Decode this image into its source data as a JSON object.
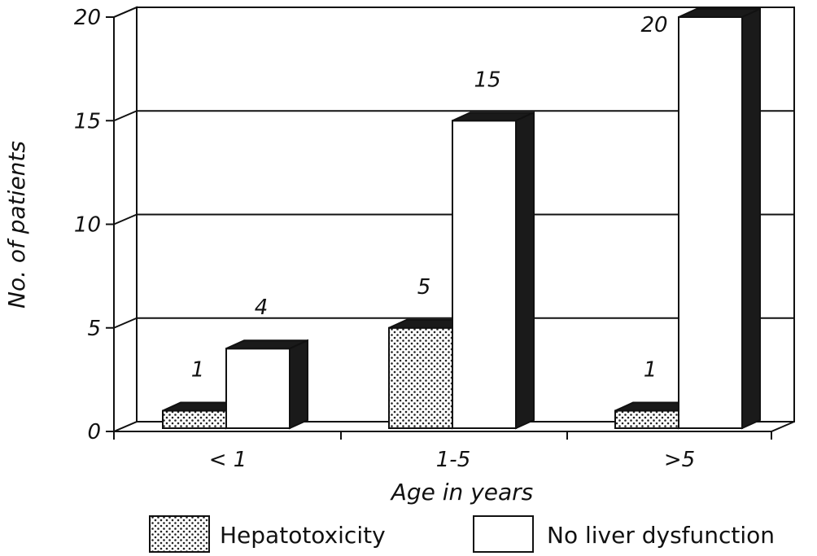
{
  "chart_data": {
    "type": "bar",
    "style": "3d-clustered",
    "title": "",
    "xlabel": "Age in years",
    "ylabel": "No. of patients",
    "ylim": [
      0,
      20
    ],
    "yticks": [
      "0",
      "5",
      "10",
      "15",
      "20"
    ],
    "categories": [
      "< 1",
      "1-5",
      ">5"
    ],
    "series": [
      {
        "name": "Hepatotoxicity",
        "values": [
          1,
          5,
          1
        ],
        "labels": [
          "1",
          "5",
          "1"
        ],
        "pattern": "dots"
      },
      {
        "name": "No liver dysfunction",
        "values": [
          4,
          15,
          20
        ],
        "labels": [
          "4",
          "15",
          "20"
        ],
        "pattern": "white"
      }
    ],
    "grid": true,
    "legend": "bottom"
  }
}
